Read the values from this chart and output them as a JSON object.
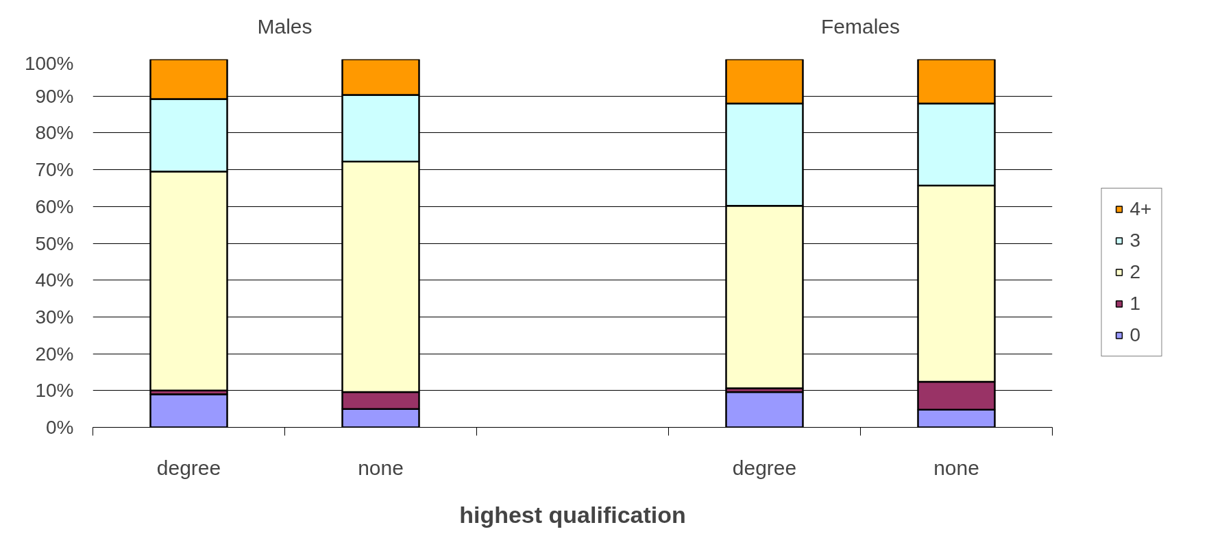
{
  "chart_data": {
    "type": "bar",
    "stacked": true,
    "xlabel": "highest qualification",
    "categories": [
      "degree",
      "none",
      null,
      "degree",
      "none"
    ],
    "series": [
      {
        "name": "0",
        "color": "#9999ff",
        "values": [
          9,
          5,
          null,
          9.6,
          4.8
        ]
      },
      {
        "name": "1",
        "color": "#993366",
        "values": [
          1,
          4.6,
          null,
          1,
          7.6
        ]
      },
      {
        "name": "2",
        "color": "#ffffcc",
        "values": [
          59.5,
          62.6,
          null,
          49.6,
          53.3
        ]
      },
      {
        "name": "3",
        "color": "#ccffff",
        "values": [
          19.7,
          18.1,
          null,
          27.8,
          22.3
        ]
      },
      {
        "name": "4+",
        "color": "#ff9900",
        "values": [
          10.8,
          9.7,
          null,
          12,
          12
        ]
      }
    ],
    "ylim": [
      0,
      100
    ],
    "yticks": [
      {
        "value": 0,
        "label": "0%"
      },
      {
        "value": 10,
        "label": "10%"
      },
      {
        "value": 20,
        "label": "20%"
      },
      {
        "value": 30,
        "label": "30%"
      },
      {
        "value": 40,
        "label": "40%"
      },
      {
        "value": 50,
        "label": "50%"
      },
      {
        "value": 60,
        "label": "60%"
      },
      {
        "value": 70,
        "label": "70%"
      },
      {
        "value": 80,
        "label": "80%"
      },
      {
        "value": 90,
        "label": "90%"
      },
      {
        "value": 100,
        "label": "100%"
      }
    ],
    "grid": "y",
    "legend": "right",
    "annotations": [
      "Males",
      "Females"
    ]
  }
}
